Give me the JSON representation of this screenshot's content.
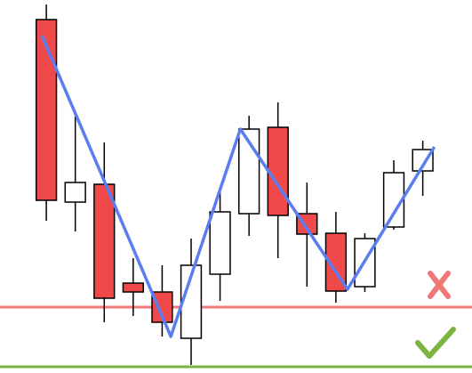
{
  "chart_data": {
    "type": "candlestick",
    "x": [
      0,
      1,
      2,
      3,
      4,
      5,
      6,
      7,
      8,
      9,
      10,
      11,
      12,
      13
    ],
    "open": [
      397,
      192,
      212,
      101,
      91,
      39,
      111,
      179,
      276,
      179,
      157,
      97,
      164,
      227
    ],
    "close": [
      194,
      214,
      84,
      91,
      57,
      121,
      181,
      274,
      177,
      156,
      92,
      151,
      225,
      251
    ],
    "high": [
      414,
      289,
      259,
      129,
      121,
      151,
      204,
      289,
      304,
      214,
      181,
      157,
      239,
      261
    ],
    "low": [
      171,
      159,
      57,
      64,
      41,
      9,
      81,
      154,
      129,
      97,
      79,
      91,
      161,
      199
    ],
    "up_color": "#ffffff",
    "down_color": "#f0494a",
    "zigzag": {
      "x": [
        -0.15,
        4.3,
        6.7,
        10.4,
        13.4
      ],
      "values": [
        379,
        41,
        274,
        94,
        254
      ],
      "color": "#5b7df0"
    },
    "resistance": {
      "value": 74,
      "color": "#f07878"
    },
    "support": {
      "value": 7,
      "color": "#7cb342"
    },
    "xlim": [
      -1.6,
      14.7
    ],
    "ylim": [
      0,
      419
    ]
  }
}
